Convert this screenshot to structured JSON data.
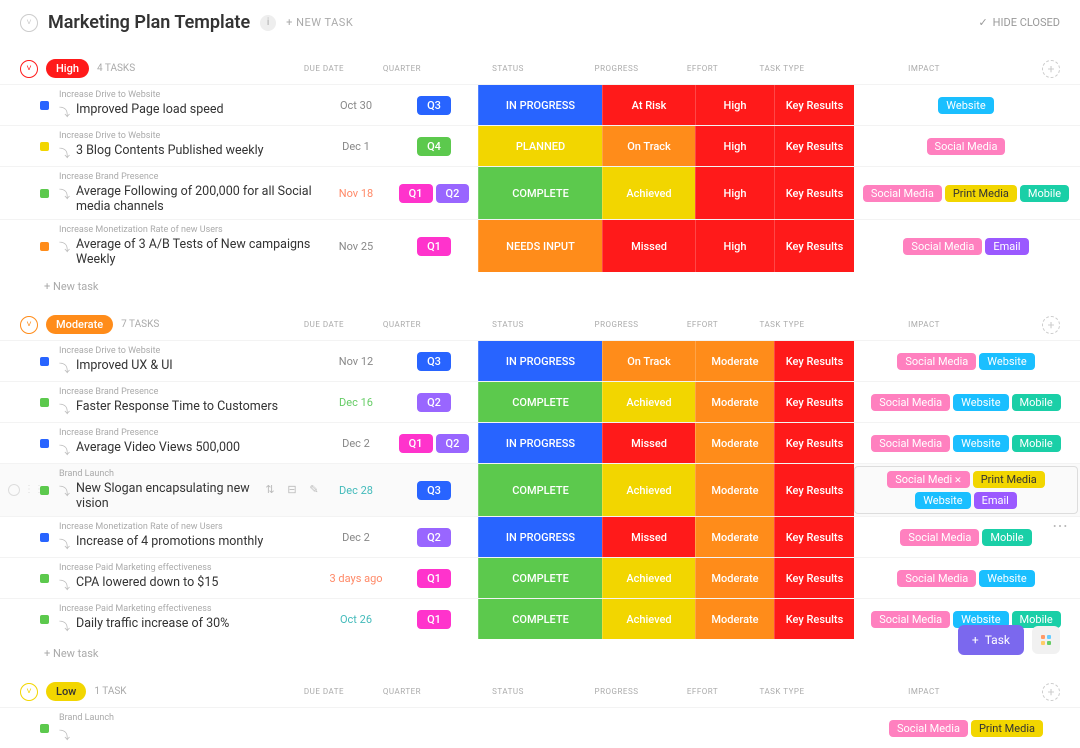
{
  "title": "Marketing Plan Template",
  "newTaskHdr": "+ NEW TASK",
  "hideClosed": "HIDE CLOSED",
  "newTaskRow": "+ New task",
  "fabLabel": "Task",
  "columns": {
    "due": "DUE DATE",
    "quarter": "QUARTER",
    "status": "STATUS",
    "progress": "PROGRESS",
    "effort": "EFFORT",
    "type": "TASK TYPE",
    "impact": "IMPACT"
  },
  "colors": {
    "red": "#ff1a1a",
    "orange": "#ff8c1a",
    "yellow": "#f2d600",
    "green": "#5cc94d",
    "blue": "#2864ff",
    "pink": "#ff4db8",
    "magenta": "#ff33cc",
    "purple": "#9966ff",
    "teal": "#1ab8b8",
    "website": "#1abfff",
    "socialmedia": "#ff80bf",
    "printmedia": "#f2d600",
    "mobile": "#1acfa7",
    "email": "#9b59ff",
    "due_red": "#f86",
    "due_green": "#6c6",
    "due_gray": "#888",
    "due_teal": "#4bb"
  },
  "statusColors": {
    "IN PROGRESS": "#2864ff",
    "PLANNED": "#f2d600",
    "COMPLETE": "#5cc94d",
    "NEEDS INPUT": "#ff8c1a"
  },
  "progressColors": {
    "At Risk": "#ff1a1a",
    "On Track": "#ff8c1a",
    "Achieved": "#f2d600",
    "Missed": "#ff1a1a"
  },
  "qColors": {
    "Q1": "#ff33cc",
    "Q2": "#9966ff",
    "Q3": "#2864ff",
    "Q4": "#5cc94d"
  },
  "effortColors": {
    "High": "#ff1a1a",
    "Moderate": "#ff8c1a"
  },
  "tagColors": {
    "Website": "#1abfff",
    "Social Media": "#ff80bf",
    "Print Media": "#f2d600",
    "Mobile": "#1acfa7",
    "Email": "#9b59ff"
  },
  "groups": [
    {
      "name": "High",
      "color": "#ff1a1a",
      "count": "4 TASKS",
      "tasks": [
        {
          "sq": "#2864ff",
          "cat": "Increase Drive to Website",
          "title": "Improved Page load speed",
          "due": "Oct 30",
          "dueColor": "due_gray",
          "q": [
            "Q3"
          ],
          "status": "IN PROGRESS",
          "progress": "At Risk",
          "effort": "High",
          "type": "Key Results",
          "tags": [
            "Website"
          ]
        },
        {
          "sq": "#f2d600",
          "cat": "Increase Drive to Website",
          "title": "3 Blog Contents Published weekly",
          "due": "Dec 1",
          "dueColor": "due_gray",
          "q": [
            "Q4"
          ],
          "status": "PLANNED",
          "progress": "On Track",
          "effort": "High",
          "type": "Key Results",
          "tags": [
            "Social Media"
          ]
        },
        {
          "sq": "#5cc94d",
          "cat": "Increase Brand Presence",
          "title": "Average Following of 200,000 for all Social media channels",
          "due": "Nov 18",
          "dueColor": "due_red",
          "q": [
            "Q1",
            "Q2"
          ],
          "status": "COMPLETE",
          "progress": "Achieved",
          "effort": "High",
          "type": "Key Results",
          "tags": [
            "Social Media",
            "Print Media",
            "Mobile"
          ]
        },
        {
          "sq": "#ff8c1a",
          "cat": "Increase Monetization Rate of new Users",
          "title": "Average of 3 A/B Tests of New campaigns Weekly",
          "due": "Nov 25",
          "dueColor": "due_gray",
          "q": [
            "Q1"
          ],
          "status": "NEEDS INPUT",
          "progress": "Missed",
          "effort": "High",
          "type": "Key Results",
          "tags": [
            "Social Media",
            "Email"
          ]
        }
      ]
    },
    {
      "name": "Moderate",
      "color": "#ff8c1a",
      "count": "7 TASKS",
      "tasks": [
        {
          "sq": "#2864ff",
          "cat": "Increase Drive to Website",
          "title": "Improved UX & UI",
          "due": "Nov 12",
          "dueColor": "due_gray",
          "q": [
            "Q3"
          ],
          "status": "IN PROGRESS",
          "progress": "On Track",
          "effort": "Moderate",
          "type": "Key Results",
          "tags": [
            "Social Media",
            "Website"
          ]
        },
        {
          "sq": "#5cc94d",
          "cat": "Increase Brand Presence",
          "title": "Faster Response Time to Customers",
          "due": "Dec 16",
          "dueColor": "due_green",
          "q": [
            "Q2"
          ],
          "status": "COMPLETE",
          "progress": "Achieved",
          "effort": "Moderate",
          "type": "Key Results",
          "tags": [
            "Social Media",
            "Website",
            "Mobile"
          ]
        },
        {
          "sq": "#2864ff",
          "cat": "Increase Brand Presence",
          "title": "Average Video Views 500,000",
          "due": "Dec 2",
          "dueColor": "due_gray",
          "q": [
            "Q1",
            "Q2"
          ],
          "status": "IN PROGRESS",
          "progress": "Missed",
          "effort": "Moderate",
          "type": "Key Results",
          "tags": [
            "Social Media",
            "Website",
            "Mobile"
          ]
        },
        {
          "sq": "#5cc94d",
          "cat": "Brand Launch",
          "title": "New Slogan encapsulating new vision",
          "due": "Dec 28",
          "dueColor": "due_teal",
          "q": [
            "Q3"
          ],
          "status": "COMPLETE",
          "progress": "Achieved",
          "effort": "Moderate",
          "type": "Key Results",
          "tags": [
            "Social Media",
            "Print Media",
            "Website",
            "Email"
          ],
          "hover": true,
          "tagX": 0
        },
        {
          "sq": "#2864ff",
          "cat": "Increase Monetization Rate of new Users",
          "title": "Increase of 4 promotions monthly",
          "due": "Dec 2",
          "dueColor": "due_gray",
          "q": [
            "Q2"
          ],
          "status": "IN PROGRESS",
          "progress": "Missed",
          "effort": "Moderate",
          "type": "Key Results",
          "tags": [
            "Social Media",
            "Mobile"
          ]
        },
        {
          "sq": "#5cc94d",
          "cat": "Increase Paid Marketing effectiveness",
          "title": "CPA lowered down to $15",
          "due": "3 days ago",
          "dueColor": "due_red",
          "q": [
            "Q1"
          ],
          "status": "COMPLETE",
          "progress": "Achieved",
          "effort": "Moderate",
          "type": "Key Results",
          "tags": [
            "Social Media",
            "Website"
          ]
        },
        {
          "sq": "#5cc94d",
          "cat": "Increase Paid Marketing effectiveness",
          "title": "Daily traffic increase of 30%",
          "due": "Oct 26",
          "dueColor": "due_teal",
          "q": [
            "Q1"
          ],
          "status": "COMPLETE",
          "progress": "Achieved",
          "effort": "Moderate",
          "type": "Key Results",
          "tags": [
            "Social Media",
            "Website",
            "Mobile"
          ]
        }
      ]
    },
    {
      "name": "Low",
      "color": "#f2d600",
      "count": "1 TASK",
      "tasks": [
        {
          "sq": "#5cc94d",
          "cat": "Brand Launch",
          "title": "",
          "due": "",
          "dueColor": "due_gray",
          "q": [],
          "status": "",
          "progress": "",
          "effort": "",
          "type": "",
          "tags": [
            "Social Media",
            "Print Media"
          ],
          "partial": true
        }
      ],
      "noFooter": true
    }
  ]
}
